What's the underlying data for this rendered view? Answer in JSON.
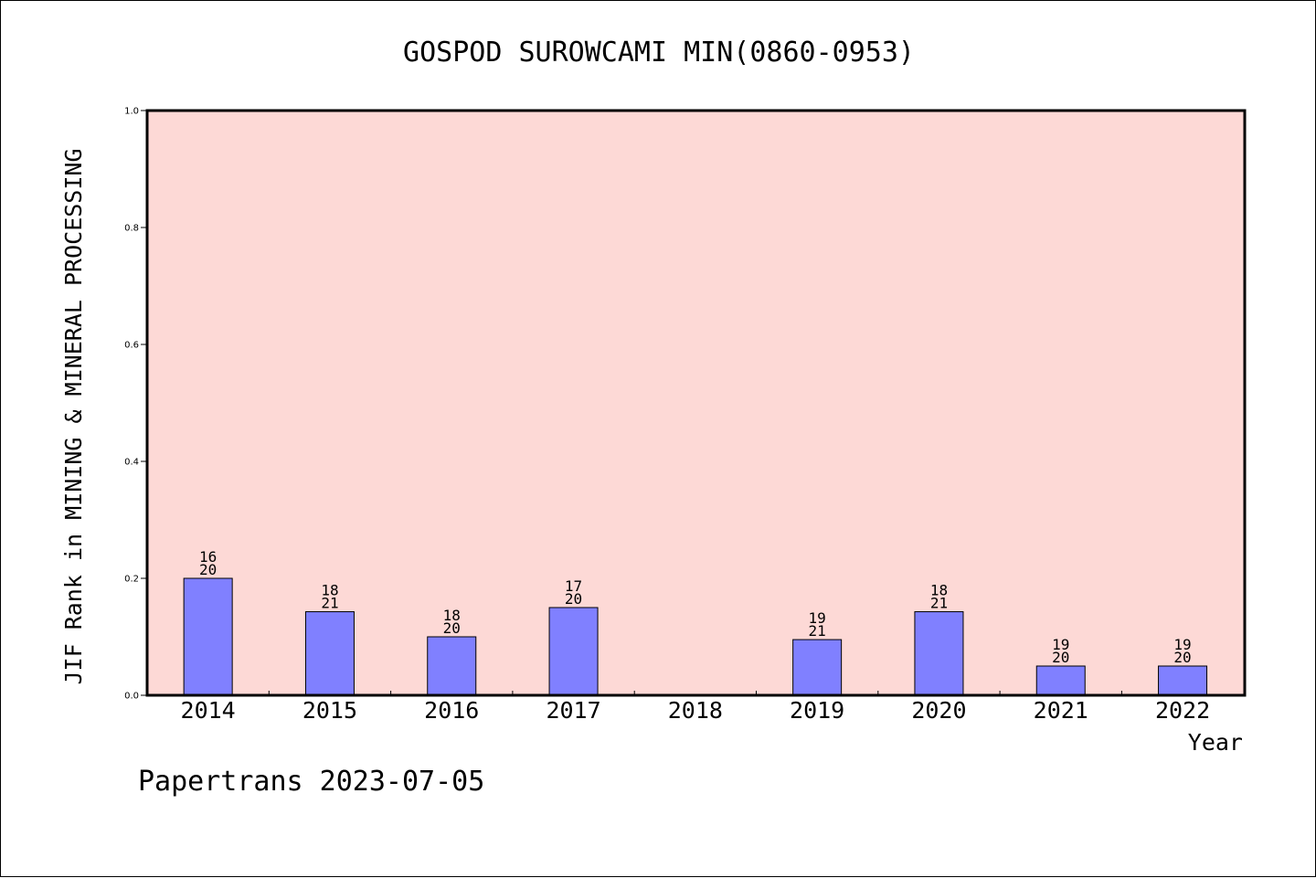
{
  "chart_data": {
    "type": "bar",
    "title": "GOSPOD SUROWCAMI MIN(0860-0953)",
    "ylabel": "JIF Rank in MINING & MINERAL PROCESSING",
    "xlabel": "Year",
    "footer": "Papertrans 2023-07-05",
    "categories": [
      "2014",
      "2015",
      "2016",
      "2017",
      "2018",
      "2019",
      "2020",
      "2021",
      "2022"
    ],
    "values": [
      0.2,
      0.1429,
      0.1,
      0.15,
      null,
      0.0952,
      0.1429,
      0.05,
      0.05
    ],
    "rank_labels": [
      [
        "16",
        "20"
      ],
      [
        "18",
        "21"
      ],
      [
        "18",
        "20"
      ],
      [
        "17",
        "20"
      ],
      null,
      [
        "19",
        "21"
      ],
      [
        "18",
        "21"
      ],
      [
        "19",
        "20"
      ],
      [
        "19",
        "20"
      ]
    ],
    "yticks": [
      "0.0",
      "0.2",
      "0.4",
      "0.6",
      "0.8",
      "1.0"
    ],
    "ylim": [
      0,
      1
    ],
    "grid": false,
    "colors": {
      "plot_background": "#fdd9d6",
      "bar_fill": "#8080ff",
      "bar_stroke": "#000000",
      "axis": "#000000"
    }
  }
}
